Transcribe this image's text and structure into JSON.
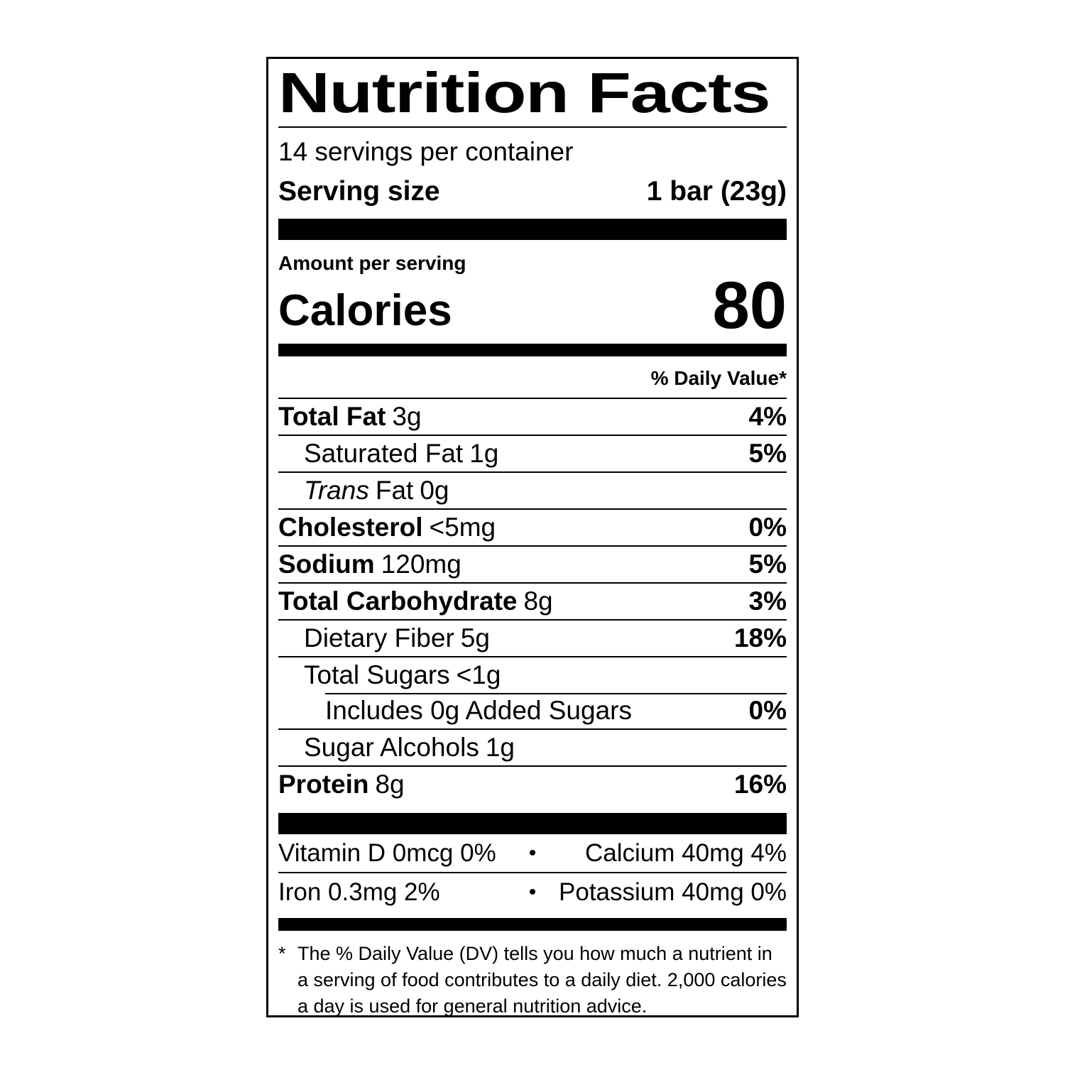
{
  "colors": {
    "ink": "#000000",
    "background": "#ffffff"
  },
  "label": {
    "title": "Nutrition Facts",
    "servings_per_container": "14 servings per container",
    "serving_size_label": "Serving size",
    "serving_size_value": "1 bar (23g)",
    "amount_per_serving": "Amount per serving",
    "calories_label": "Calories",
    "calories_value": "80",
    "daily_value_header": "% Daily Value*",
    "nutrients": [
      {
        "name": "Total Fat",
        "amount": "3g",
        "dv": "4%"
      },
      {
        "name": "Saturated Fat",
        "amount": "1g",
        "dv": "5%"
      },
      {
        "name_italic": "Trans",
        "name": "Fat",
        "amount": "0g",
        "dv": ""
      },
      {
        "name": "Cholesterol",
        "amount": "<5mg",
        "dv": "0%"
      },
      {
        "name": "Sodium",
        "amount": "120mg",
        "dv": "5%"
      },
      {
        "name": "Total Carbohydrate",
        "amount": "8g",
        "dv": "3%"
      },
      {
        "name": "Dietary Fiber",
        "amount": "5g",
        "dv": "18%"
      },
      {
        "name": "Total Sugars",
        "amount": "<1g",
        "dv": ""
      },
      {
        "name": "Includes 0g Added Sugars",
        "amount": "",
        "dv": "0%"
      },
      {
        "name": "Sugar Alcohols",
        "amount": "1g",
        "dv": ""
      },
      {
        "name": "Protein",
        "amount": "8g",
        "dv": "16%"
      }
    ],
    "micronutrient_separator": "•",
    "micronutrients": [
      {
        "left": "Vitamin D 0mcg 0%",
        "right": "Calcium 40mg 4%"
      },
      {
        "left": "Iron 0.3mg 2%",
        "right": "Potassium 40mg 0%"
      }
    ],
    "footnote_marker": "*",
    "footnote": "The % Daily Value (DV) tells you how much a nutrient in a serving of food contributes to a daily diet. 2,000 calories a day is used for general nutrition advice."
  }
}
